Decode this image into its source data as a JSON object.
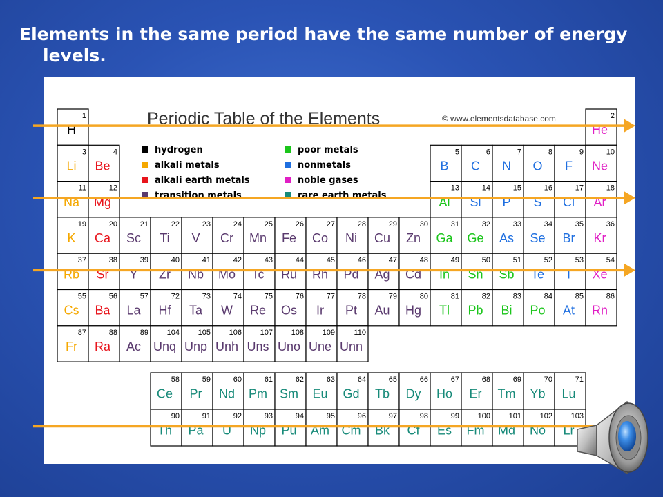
{
  "slide": {
    "title": "Elements in the same period have the same number of energy levels.",
    "background_color": "#2a53b4"
  },
  "table": {
    "title": "Periodic Table of the Elements",
    "copyright": "© www.elementsdatabase.com",
    "colors": {
      "hydrogen": "#000000",
      "alkali": "#f5a800",
      "alkaline": "#e8141c",
      "transition": "#5a3a6e",
      "poor": "#1bc51b",
      "nonmetal": "#1f6fe0",
      "noble": "#e01ec4",
      "rare": "#178a79"
    },
    "legend": [
      {
        "key": "hydrogen",
        "label": "hydrogen"
      },
      {
        "key": "alkali",
        "label": "alkali metals"
      },
      {
        "key": "alkaline",
        "label": "alkali earth metals"
      },
      {
        "key": "transition",
        "label": "transition metals"
      },
      {
        "key": "poor",
        "label": "poor metals"
      },
      {
        "key": "nonmetal",
        "label": "nonmetals"
      },
      {
        "key": "noble",
        "label": "noble gases"
      },
      {
        "key": "rare",
        "label": "rare earth metals"
      }
    ],
    "elements": [
      {
        "n": 1,
        "s": "H",
        "t": "hydrogen",
        "row": 1,
        "col": 1
      },
      {
        "n": 2,
        "s": "He",
        "t": "noble",
        "row": 1,
        "col": 18
      },
      {
        "n": 3,
        "s": "Li",
        "t": "alkali",
        "row": 2,
        "col": 1
      },
      {
        "n": 4,
        "s": "Be",
        "t": "alkaline",
        "row": 2,
        "col": 2
      },
      {
        "n": 5,
        "s": "B",
        "t": "nonmetal",
        "row": 2,
        "col": 13
      },
      {
        "n": 6,
        "s": "C",
        "t": "nonmetal",
        "row": 2,
        "col": 14
      },
      {
        "n": 7,
        "s": "N",
        "t": "nonmetal",
        "row": 2,
        "col": 15
      },
      {
        "n": 8,
        "s": "O",
        "t": "nonmetal",
        "row": 2,
        "col": 16
      },
      {
        "n": 9,
        "s": "F",
        "t": "nonmetal",
        "row": 2,
        "col": 17
      },
      {
        "n": 10,
        "s": "Ne",
        "t": "noble",
        "row": 2,
        "col": 18
      },
      {
        "n": 11,
        "s": "Na",
        "t": "alkali",
        "row": 3,
        "col": 1
      },
      {
        "n": 12,
        "s": "Mg",
        "t": "alkaline",
        "row": 3,
        "col": 2
      },
      {
        "n": 13,
        "s": "Al",
        "t": "poor",
        "row": 3,
        "col": 13
      },
      {
        "n": 14,
        "s": "Si",
        "t": "nonmetal",
        "row": 3,
        "col": 14
      },
      {
        "n": 15,
        "s": "P",
        "t": "nonmetal",
        "row": 3,
        "col": 15
      },
      {
        "n": 16,
        "s": "S",
        "t": "nonmetal",
        "row": 3,
        "col": 16
      },
      {
        "n": 17,
        "s": "Cl",
        "t": "nonmetal",
        "row": 3,
        "col": 17
      },
      {
        "n": 18,
        "s": "Ar",
        "t": "noble",
        "row": 3,
        "col": 18
      },
      {
        "n": 19,
        "s": "K",
        "t": "alkali",
        "row": 4,
        "col": 1
      },
      {
        "n": 20,
        "s": "Ca",
        "t": "alkaline",
        "row": 4,
        "col": 2
      },
      {
        "n": 21,
        "s": "Sc",
        "t": "transition",
        "row": 4,
        "col": 3
      },
      {
        "n": 22,
        "s": "Ti",
        "t": "transition",
        "row": 4,
        "col": 4
      },
      {
        "n": 23,
        "s": "V",
        "t": "transition",
        "row": 4,
        "col": 5
      },
      {
        "n": 24,
        "s": "Cr",
        "t": "transition",
        "row": 4,
        "col": 6
      },
      {
        "n": 25,
        "s": "Mn",
        "t": "transition",
        "row": 4,
        "col": 7
      },
      {
        "n": 26,
        "s": "Fe",
        "t": "transition",
        "row": 4,
        "col": 8
      },
      {
        "n": 27,
        "s": "Co",
        "t": "transition",
        "row": 4,
        "col": 9
      },
      {
        "n": 28,
        "s": "Ni",
        "t": "transition",
        "row": 4,
        "col": 10
      },
      {
        "n": 29,
        "s": "Cu",
        "t": "transition",
        "row": 4,
        "col": 11
      },
      {
        "n": 30,
        "s": "Zn",
        "t": "transition",
        "row": 4,
        "col": 12
      },
      {
        "n": 31,
        "s": "Ga",
        "t": "poor",
        "row": 4,
        "col": 13
      },
      {
        "n": 32,
        "s": "Ge",
        "t": "poor",
        "row": 4,
        "col": 14
      },
      {
        "n": 33,
        "s": "As",
        "t": "nonmetal",
        "row": 4,
        "col": 15
      },
      {
        "n": 34,
        "s": "Se",
        "t": "nonmetal",
        "row": 4,
        "col": 16
      },
      {
        "n": 35,
        "s": "Br",
        "t": "nonmetal",
        "row": 4,
        "col": 17
      },
      {
        "n": 36,
        "s": "Kr",
        "t": "noble",
        "row": 4,
        "col": 18
      },
      {
        "n": 37,
        "s": "Rb",
        "t": "alkali",
        "row": 5,
        "col": 1
      },
      {
        "n": 38,
        "s": "Sr",
        "t": "alkaline",
        "row": 5,
        "col": 2
      },
      {
        "n": 39,
        "s": "Y",
        "t": "transition",
        "row": 5,
        "col": 3
      },
      {
        "n": 40,
        "s": "Zr",
        "t": "transition",
        "row": 5,
        "col": 4
      },
      {
        "n": 41,
        "s": "Nb",
        "t": "transition",
        "row": 5,
        "col": 5
      },
      {
        "n": 42,
        "s": "Mo",
        "t": "transition",
        "row": 5,
        "col": 6
      },
      {
        "n": 43,
        "s": "Tc",
        "t": "transition",
        "row": 5,
        "col": 7
      },
      {
        "n": 44,
        "s": "Ru",
        "t": "transition",
        "row": 5,
        "col": 8
      },
      {
        "n": 45,
        "s": "Rh",
        "t": "transition",
        "row": 5,
        "col": 9
      },
      {
        "n": 46,
        "s": "Pd",
        "t": "transition",
        "row": 5,
        "col": 10
      },
      {
        "n": 47,
        "s": "Ag",
        "t": "transition",
        "row": 5,
        "col": 11
      },
      {
        "n": 48,
        "s": "Cd",
        "t": "transition",
        "row": 5,
        "col": 12
      },
      {
        "n": 49,
        "s": "In",
        "t": "poor",
        "row": 5,
        "col": 13
      },
      {
        "n": 50,
        "s": "Sn",
        "t": "poor",
        "row": 5,
        "col": 14
      },
      {
        "n": 51,
        "s": "Sb",
        "t": "poor",
        "row": 5,
        "col": 15
      },
      {
        "n": 52,
        "s": "Te",
        "t": "nonmetal",
        "row": 5,
        "col": 16
      },
      {
        "n": 53,
        "s": "I",
        "t": "nonmetal",
        "row": 5,
        "col": 17
      },
      {
        "n": 54,
        "s": "Xe",
        "t": "noble",
        "row": 5,
        "col": 18
      },
      {
        "n": 55,
        "s": "Cs",
        "t": "alkali",
        "row": 6,
        "col": 1
      },
      {
        "n": 56,
        "s": "Ba",
        "t": "alkaline",
        "row": 6,
        "col": 2
      },
      {
        "n": 57,
        "s": "La",
        "t": "transition",
        "row": 6,
        "col": 3
      },
      {
        "n": 72,
        "s": "Hf",
        "t": "transition",
        "row": 6,
        "col": 4
      },
      {
        "n": 73,
        "s": "Ta",
        "t": "transition",
        "row": 6,
        "col": 5
      },
      {
        "n": 74,
        "s": "W",
        "t": "transition",
        "row": 6,
        "col": 6
      },
      {
        "n": 75,
        "s": "Re",
        "t": "transition",
        "row": 6,
        "col": 7
      },
      {
        "n": 76,
        "s": "Os",
        "t": "transition",
        "row": 6,
        "col": 8
      },
      {
        "n": 77,
        "s": "Ir",
        "t": "transition",
        "row": 6,
        "col": 9
      },
      {
        "n": 78,
        "s": "Pt",
        "t": "transition",
        "row": 6,
        "col": 10
      },
      {
        "n": 79,
        "s": "Au",
        "t": "transition",
        "row": 6,
        "col": 11
      },
      {
        "n": 80,
        "s": "Hg",
        "t": "transition",
        "row": 6,
        "col": 12
      },
      {
        "n": 81,
        "s": "Tl",
        "t": "poor",
        "row": 6,
        "col": 13
      },
      {
        "n": 82,
        "s": "Pb",
        "t": "poor",
        "row": 6,
        "col": 14
      },
      {
        "n": 83,
        "s": "Bi",
        "t": "poor",
        "row": 6,
        "col": 15
      },
      {
        "n": 84,
        "s": "Po",
        "t": "poor",
        "row": 6,
        "col": 16
      },
      {
        "n": 85,
        "s": "At",
        "t": "nonmetal",
        "row": 6,
        "col": 17
      },
      {
        "n": 86,
        "s": "Rn",
        "t": "noble",
        "row": 6,
        "col": 18
      },
      {
        "n": 87,
        "s": "Fr",
        "t": "alkali",
        "row": 7,
        "col": 1
      },
      {
        "n": 88,
        "s": "Ra",
        "t": "alkaline",
        "row": 7,
        "col": 2
      },
      {
        "n": 89,
        "s": "Ac",
        "t": "transition",
        "row": 7,
        "col": 3
      },
      {
        "n": 104,
        "s": "Unq",
        "t": "transition",
        "row": 7,
        "col": 4
      },
      {
        "n": 105,
        "s": "Unp",
        "t": "transition",
        "row": 7,
        "col": 5
      },
      {
        "n": 106,
        "s": "Unh",
        "t": "transition",
        "row": 7,
        "col": 6
      },
      {
        "n": 107,
        "s": "Uns",
        "t": "transition",
        "row": 7,
        "col": 7
      },
      {
        "n": 108,
        "s": "Uno",
        "t": "transition",
        "row": 7,
        "col": 8
      },
      {
        "n": 109,
        "s": "Une",
        "t": "transition",
        "row": 7,
        "col": 9
      },
      {
        "n": 110,
        "s": "Unn",
        "t": "transition",
        "row": 7,
        "col": 10
      },
      {
        "n": 58,
        "s": "Ce",
        "t": "rare",
        "row": 9,
        "col": 4
      },
      {
        "n": 59,
        "s": "Pr",
        "t": "rare",
        "row": 9,
        "col": 5
      },
      {
        "n": 60,
        "s": "Nd",
        "t": "rare",
        "row": 9,
        "col": 6
      },
      {
        "n": 61,
        "s": "Pm",
        "t": "rare",
        "row": 9,
        "col": 7
      },
      {
        "n": 62,
        "s": "Sm",
        "t": "rare",
        "row": 9,
        "col": 8
      },
      {
        "n": 63,
        "s": "Eu",
        "t": "rare",
        "row": 9,
        "col": 9
      },
      {
        "n": 64,
        "s": "Gd",
        "t": "rare",
        "row": 9,
        "col": 10
      },
      {
        "n": 65,
        "s": "Tb",
        "t": "rare",
        "row": 9,
        "col": 11
      },
      {
        "n": 66,
        "s": "Dy",
        "t": "rare",
        "row": 9,
        "col": 12
      },
      {
        "n": 67,
        "s": "Ho",
        "t": "rare",
        "row": 9,
        "col": 13
      },
      {
        "n": 68,
        "s": "Er",
        "t": "rare",
        "row": 9,
        "col": 14
      },
      {
        "n": 69,
        "s": "Tm",
        "t": "rare",
        "row": 9,
        "col": 15
      },
      {
        "n": 70,
        "s": "Yb",
        "t": "rare",
        "row": 9,
        "col": 16
      },
      {
        "n": 71,
        "s": "Lu",
        "t": "rare",
        "row": 9,
        "col": 17
      },
      {
        "n": 90,
        "s": "Th",
        "t": "rare",
        "row": 10,
        "col": 4
      },
      {
        "n": 91,
        "s": "Pa",
        "t": "rare",
        "row": 10,
        "col": 5
      },
      {
        "n": 92,
        "s": "U",
        "t": "rare",
        "row": 10,
        "col": 6
      },
      {
        "n": 93,
        "s": "Np",
        "t": "rare",
        "row": 10,
        "col": 7
      },
      {
        "n": 94,
        "s": "Pu",
        "t": "rare",
        "row": 10,
        "col": 8
      },
      {
        "n": 95,
        "s": "Am",
        "t": "rare",
        "row": 10,
        "col": 9
      },
      {
        "n": 96,
        "s": "Cm",
        "t": "rare",
        "row": 10,
        "col": 10
      },
      {
        "n": 97,
        "s": "Bk",
        "t": "rare",
        "row": 10,
        "col": 11
      },
      {
        "n": 98,
        "s": "Cf",
        "t": "rare",
        "row": 10,
        "col": 12
      },
      {
        "n": 99,
        "s": "Es",
        "t": "rare",
        "row": 10,
        "col": 13
      },
      {
        "n": 100,
        "s": "Fm",
        "t": "rare",
        "row": 10,
        "col": 14
      },
      {
        "n": 101,
        "s": "Md",
        "t": "rare",
        "row": 10,
        "col": 15
      },
      {
        "n": 102,
        "s": "No",
        "t": "rare",
        "row": 10,
        "col": 16
      },
      {
        "n": 103,
        "s": "Lr",
        "t": "rare",
        "row": 10,
        "col": 17
      }
    ]
  },
  "annotations": {
    "arrow_color": "#f5a623",
    "period_arrow_rows": [
      1,
      3,
      5,
      10
    ]
  },
  "speaker": {
    "icon": "speaker-icon"
  }
}
